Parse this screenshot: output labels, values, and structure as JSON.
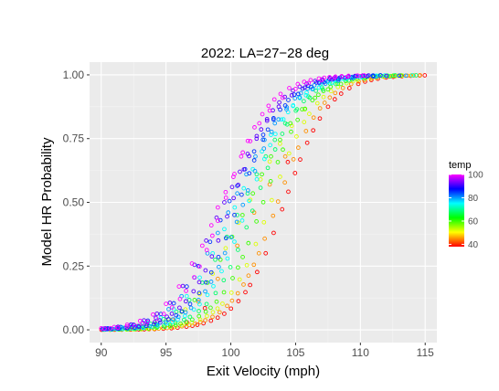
{
  "chart_data": {
    "type": "scatter",
    "title": "2022:  LA=27−28 deg",
    "xlabel": "Exit Velocity (mph)",
    "ylabel": "Model HR Probability",
    "xlim": [
      89.1,
      115.9
    ],
    "ylim": [
      -0.05,
      1.05
    ],
    "xticks": [
      90,
      95,
      100,
      105,
      110,
      115
    ],
    "yticks": [
      0.0,
      0.25,
      0.5,
      0.75,
      1.0
    ],
    "ytick_labels": [
      "0.00",
      "0.25",
      "0.50",
      "0.75",
      "1.00"
    ],
    "background": "#ebebeb",
    "grid": true,
    "legend": {
      "title": "temp",
      "placement": "right",
      "range": [
        38,
        100
      ],
      "ticks": [
        40,
        60,
        80,
        100
      ],
      "colors": [
        "#ff0000",
        "#ffff00",
        "#00ff00",
        "#00ffff",
        "#0000ff",
        "#ff00ff"
      ]
    },
    "curve_model": {
      "form": "logistic",
      "center_at_temp_100": 99.5,
      "center_shift_per_degree": 0.075,
      "slope": 0.58
    },
    "series": [
      {
        "temp": 100,
        "points": [
          [
            90.0,
            0.006
          ],
          [
            91.0,
            0.011
          ],
          [
            92.0,
            0.02
          ],
          [
            93.0,
            0.035
          ],
          [
            94.0,
            0.06
          ],
          [
            95.0,
            0.102
          ],
          [
            96.0,
            0.17
          ],
          [
            97.0,
            0.26
          ],
          [
            97.8,
            0.33
          ],
          [
            98.5,
            0.41
          ],
          [
            99.0,
            0.48
          ],
          [
            99.6,
            0.54
          ],
          [
            100.2,
            0.6
          ],
          [
            100.8,
            0.68
          ],
          [
            101.5,
            0.74
          ],
          [
            102.2,
            0.81
          ],
          [
            103.0,
            0.86
          ],
          [
            104.0,
            0.91
          ],
          [
            105.0,
            0.945
          ],
          [
            106.0,
            0.968
          ],
          [
            107.0,
            0.98
          ],
          [
            108.0,
            0.988
          ],
          [
            109.0,
            0.992
          ],
          [
            110.0,
            0.995
          ]
        ]
      },
      {
        "temp": 92,
        "points": [
          [
            90.3,
            0.006
          ],
          [
            91.3,
            0.012
          ],
          [
            92.3,
            0.021
          ],
          [
            93.3,
            0.037
          ],
          [
            94.3,
            0.063
          ],
          [
            95.3,
            0.106
          ],
          [
            96.3,
            0.172
          ],
          [
            97.2,
            0.255
          ],
          [
            98.1,
            0.35
          ],
          [
            98.9,
            0.44
          ],
          [
            99.5,
            0.5
          ],
          [
            100.1,
            0.56
          ],
          [
            100.7,
            0.62
          ],
          [
            101.3,
            0.69
          ],
          [
            102.0,
            0.76
          ],
          [
            102.8,
            0.82
          ],
          [
            103.7,
            0.875
          ],
          [
            104.7,
            0.92
          ],
          [
            105.7,
            0.95
          ],
          [
            106.8,
            0.97
          ],
          [
            107.8,
            0.982
          ],
          [
            108.8,
            0.989
          ],
          [
            110.5,
            0.994
          ],
          [
            112.0,
            0.996
          ]
        ]
      },
      {
        "temp": 85,
        "points": [
          [
            90.5,
            0.006
          ],
          [
            91.5,
            0.011
          ],
          [
            92.5,
            0.02
          ],
          [
            93.6,
            0.036
          ],
          [
            94.6,
            0.062
          ],
          [
            95.6,
            0.104
          ],
          [
            96.6,
            0.17
          ],
          [
            97.5,
            0.25
          ],
          [
            98.4,
            0.345
          ],
          [
            99.2,
            0.43
          ],
          [
            99.9,
            0.505
          ],
          [
            100.5,
            0.565
          ],
          [
            101.1,
            0.63
          ],
          [
            101.8,
            0.7
          ],
          [
            102.5,
            0.765
          ],
          [
            103.3,
            0.83
          ],
          [
            104.2,
            0.88
          ],
          [
            105.2,
            0.925
          ],
          [
            106.2,
            0.953
          ],
          [
            107.2,
            0.971
          ],
          [
            108.3,
            0.983
          ],
          [
            109.3,
            0.99
          ],
          [
            111.0,
            0.994
          ],
          [
            113.0,
            0.997
          ]
        ]
      },
      {
        "temp": 80,
        "points": [
          [
            90.2,
            0.005
          ],
          [
            91.2,
            0.009
          ],
          [
            92.2,
            0.016
          ],
          [
            93.2,
            0.028
          ],
          [
            94.2,
            0.048
          ],
          [
            95.2,
            0.081
          ],
          [
            96.2,
            0.132
          ],
          [
            97.2,
            0.205
          ],
          [
            98.2,
            0.3
          ],
          [
            99.0,
            0.38
          ],
          [
            99.8,
            0.46
          ],
          [
            100.5,
            0.535
          ],
          [
            101.2,
            0.61
          ],
          [
            101.9,
            0.68
          ],
          [
            102.6,
            0.745
          ],
          [
            103.4,
            0.81
          ],
          [
            104.3,
            0.865
          ],
          [
            105.3,
            0.912
          ],
          [
            106.3,
            0.944
          ],
          [
            107.3,
            0.965
          ],
          [
            108.3,
            0.978
          ],
          [
            109.4,
            0.987
          ],
          [
            111.2,
            0.993
          ],
          [
            113.5,
            0.997
          ]
        ]
      },
      {
        "temp": 75,
        "points": [
          [
            90.6,
            0.005
          ],
          [
            91.6,
            0.009
          ],
          [
            92.6,
            0.016
          ],
          [
            93.6,
            0.028
          ],
          [
            94.6,
            0.048
          ],
          [
            95.6,
            0.081
          ],
          [
            96.6,
            0.132
          ],
          [
            97.6,
            0.205
          ],
          [
            98.6,
            0.3
          ],
          [
            99.5,
            0.395
          ],
          [
            100.3,
            0.48
          ],
          [
            101.0,
            0.555
          ],
          [
            101.7,
            0.63
          ],
          [
            102.4,
            0.7
          ],
          [
            103.1,
            0.765
          ],
          [
            103.9,
            0.825
          ],
          [
            104.8,
            0.878
          ],
          [
            105.8,
            0.92
          ],
          [
            106.8,
            0.95
          ],
          [
            107.8,
            0.969
          ],
          [
            108.8,
            0.981
          ],
          [
            110.0,
            0.989
          ],
          [
            112.0,
            0.995
          ],
          [
            114.0,
            0.998
          ]
        ]
      },
      {
        "temp": 68,
        "points": [
          [
            90.8,
            0.004
          ],
          [
            91.8,
            0.008
          ],
          [
            92.8,
            0.014
          ],
          [
            93.8,
            0.024
          ],
          [
            94.8,
            0.042
          ],
          [
            95.8,
            0.071
          ],
          [
            96.8,
            0.117
          ],
          [
            97.8,
            0.185
          ],
          [
            98.8,
            0.275
          ],
          [
            99.7,
            0.365
          ],
          [
            100.5,
            0.45
          ],
          [
            101.3,
            0.535
          ],
          [
            102.0,
            0.61
          ],
          [
            102.7,
            0.68
          ],
          [
            103.4,
            0.745
          ],
          [
            104.2,
            0.81
          ],
          [
            105.1,
            0.865
          ],
          [
            106.1,
            0.91
          ],
          [
            107.1,
            0.943
          ],
          [
            108.1,
            0.964
          ],
          [
            109.1,
            0.978
          ],
          [
            110.3,
            0.987
          ],
          [
            112.3,
            0.994
          ],
          [
            114.3,
            0.998
          ]
        ]
      },
      {
        "temp": 60,
        "points": [
          [
            91.2,
            0.004
          ],
          [
            92.2,
            0.008
          ],
          [
            93.2,
            0.014
          ],
          [
            94.2,
            0.024
          ],
          [
            95.2,
            0.042
          ],
          [
            96.2,
            0.071
          ],
          [
            97.2,
            0.117
          ],
          [
            98.2,
            0.185
          ],
          [
            99.2,
            0.275
          ],
          [
            100.1,
            0.365
          ],
          [
            100.9,
            0.45
          ],
          [
            101.7,
            0.535
          ],
          [
            102.4,
            0.61
          ],
          [
            103.1,
            0.68
          ],
          [
            103.8,
            0.745
          ],
          [
            104.6,
            0.81
          ],
          [
            105.5,
            0.865
          ],
          [
            106.5,
            0.91
          ],
          [
            107.5,
            0.943
          ],
          [
            108.5,
            0.964
          ]
        ]
      },
      {
        "temp": 52,
        "points": [
          [
            92.0,
            0.005
          ],
          [
            93.5,
            0.014
          ],
          [
            95.0,
            0.034
          ],
          [
            96.5,
            0.08
          ],
          [
            97.6,
            0.14
          ],
          [
            98.6,
            0.22
          ],
          [
            99.6,
            0.32
          ],
          [
            100.6,
            0.42
          ],
          [
            101.5,
            0.51
          ],
          [
            102.3,
            0.59
          ],
          [
            103.0,
            0.66
          ],
          [
            103.8,
            0.73
          ],
          [
            104.7,
            0.8
          ],
          [
            105.7,
            0.865
          ]
        ]
      },
      {
        "temp": 45,
        "points": [
          [
            95.5,
            0.04
          ],
          [
            97.5,
            0.11
          ],
          [
            99.0,
            0.2
          ],
          [
            100.5,
            0.33
          ],
          [
            101.8,
            0.46
          ],
          [
            103.0,
            0.57
          ],
          [
            104.2,
            0.68
          ]
        ]
      },
      {
        "temp": 38,
        "points": [
          [
            96.6,
            0.03
          ],
          [
            98.0,
            0.085
          ],
          [
            104.4,
            0.658
          ]
        ]
      }
    ]
  }
}
